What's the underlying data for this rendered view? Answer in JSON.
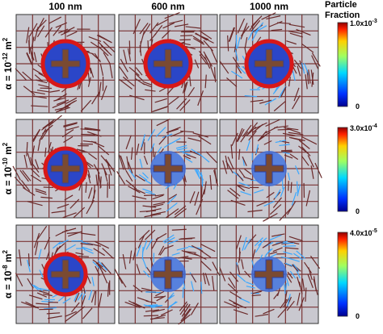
{
  "columns": [
    "100 nm",
    "600 nm",
    "1000 nm"
  ],
  "rows": [
    {
      "prefix": "α = 10",
      "exp": "-12",
      "unit": " m",
      "unit_exp": "2"
    },
    {
      "prefix": "α = 10",
      "exp": "-10",
      "unit": " m",
      "unit_exp": "2"
    },
    {
      "prefix": "α = 10",
      "exp": "-8",
      "unit": " m",
      "unit_exp": "2"
    }
  ],
  "colorbar_title": [
    "Particle",
    "Fraction"
  ],
  "colorbars": [
    {
      "max_mantissa": "1.0x10",
      "max_exp": "-3",
      "min": "0"
    },
    {
      "max_mantissa": "3.0x10",
      "max_exp": "-4",
      "min": "0"
    },
    {
      "max_mantissa": "4.0x10",
      "max_exp": "-5",
      "min": "0"
    }
  ]
}
